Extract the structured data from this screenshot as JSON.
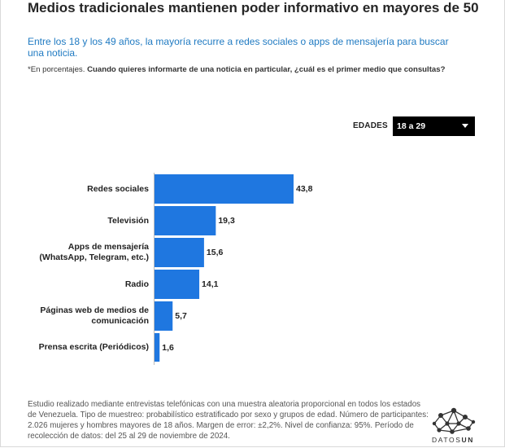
{
  "header": {
    "title": "Medios tradicionales mantienen poder informativo en mayores de 50",
    "subtitle": "Entre los 18 y los 49 años, la mayoría recurre a redes sociales o apps de mensajería para buscar una noticia.",
    "note_prefix": "*En porcentajes.",
    "note_question": "Cuando quieres informarte de una noticia en particular, ¿cuál es el primer medio que consultas?"
  },
  "filter": {
    "label": "EDADES",
    "selected": "18 a 29"
  },
  "colors": {
    "bar": "#1f77e0",
    "subtitle": "#1f7ac2"
  },
  "chart_data": {
    "type": "bar",
    "orientation": "horizontal",
    "categories": [
      "Redes sociales",
      "Televisión",
      "Apps de mensajería (WhatsApp, Telegram, etc.)",
      "Radio",
      "Páginas web de medios de comunicación",
      "Prensa escrita (Periódicos)"
    ],
    "category_lines": [
      [
        "Redes sociales"
      ],
      [
        "Televisión"
      ],
      [
        "Apps de mensajería",
        "(WhatsApp, Telegram, etc.)"
      ],
      [
        "Radio"
      ],
      [
        "Páginas web de medios de",
        "comunicación"
      ],
      [
        "Prensa escrita (Periódicos)"
      ]
    ],
    "values": [
      43.8,
      19.3,
      15.6,
      14.1,
      5.7,
      1.6
    ],
    "value_labels": [
      "43,8",
      "19,3",
      "15,6",
      "14,1",
      "5,7",
      "1,6"
    ],
    "xlim": [
      0,
      43.8
    ],
    "grid": false,
    "legend": "none"
  },
  "footer": {
    "text": "Estudio realizado mediante entrevistas telefónicas con una muestra aleatoria proporcional en todos los estados de Venezuela. Tipo de muestreo: probabilístico estratificado por sexo y grupos de edad. Número de participantes: 2.026 mujeres y hombres mayores de 18 años. Margen de error: ±2,2%. Nivel de confianza: 95%. Período de recolección de datos: del 25 al 29 de noviembre de 2024."
  },
  "logo": {
    "text_regular": "DATOS",
    "text_bold": "UN",
    "icon": "network-nodes-icon"
  }
}
